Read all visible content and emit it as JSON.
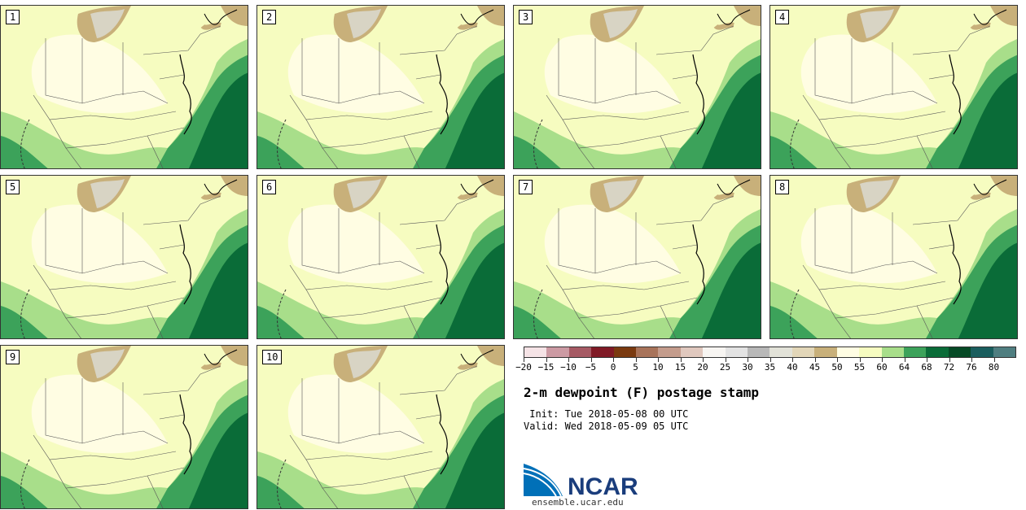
{
  "panels": [
    {
      "label": "1"
    },
    {
      "label": "2"
    },
    {
      "label": "3"
    },
    {
      "label": "4"
    },
    {
      "label": "5"
    },
    {
      "label": "6"
    },
    {
      "label": "7"
    },
    {
      "label": "8"
    },
    {
      "label": "9"
    },
    {
      "label": "10"
    }
  ],
  "colorbar": {
    "colors": [
      "#f5e3e6",
      "#cc9aa3",
      "#a65a64",
      "#801a26",
      "#7a3a10",
      "#a8735a",
      "#c49c8c",
      "#e0c8be",
      "#f7f5f2",
      "#e3e3e3",
      "#b8b8b8",
      "#e2e2d8",
      "#e2d6b8",
      "#c8b07a",
      "#fffde3",
      "#f6fcc0",
      "#a8de8a",
      "#3ca25a",
      "#0a6c38",
      "#064a26",
      "#1a5e5e",
      "#4f7e80"
    ],
    "tick_labels": [
      "−20",
      "−15",
      "−10",
      "−5",
      "0",
      "5",
      "10",
      "15",
      "20",
      "25",
      "30",
      "35",
      "40",
      "45",
      "50",
      "55",
      "60",
      "64",
      "68",
      "72",
      "76",
      "80"
    ]
  },
  "title": "2-m dewpoint (F) postage stamp",
  "init_line": " Init: Tue 2018-05-08 00 UTC",
  "valid_line": "Valid: Wed 2018-05-09 05 UTC",
  "logo_text": "NCAR",
  "site": "ensemble.ucar.edu",
  "map_colors": {
    "land_base": "#fffde3",
    "land_light": "#f6fcc0",
    "green_light": "#a8de8a",
    "green_mid": "#3ca25a",
    "green_dark": "#0a6c38",
    "tan": "#c8b07a",
    "gray": "#d8d4c4"
  }
}
